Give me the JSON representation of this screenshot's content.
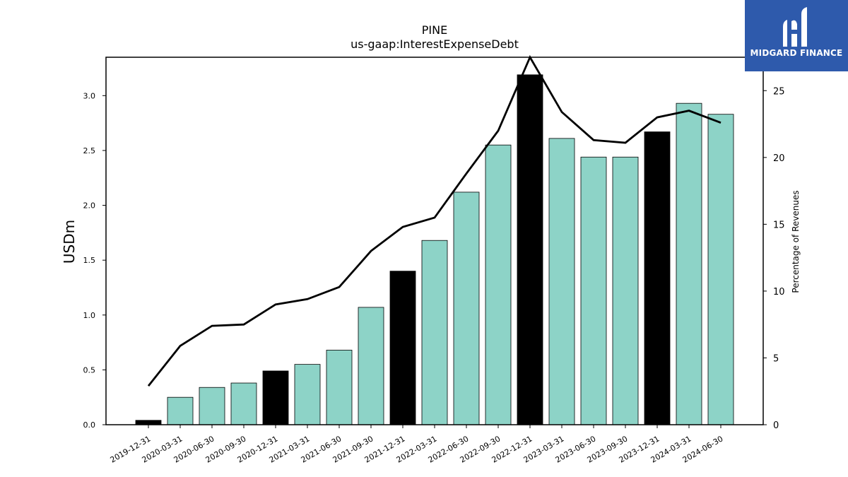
{
  "chart_data": {
    "type": "bar",
    "title": "PINE",
    "subtitle": "us-gaap:InterestExpenseDebt",
    "ylabel": "USDm",
    "y2label": "Percentage of Revenues",
    "ylim": [
      0,
      3.35
    ],
    "y2lim": [
      0,
      27.5
    ],
    "yticks": [
      "0.0",
      "0.5",
      "1.0",
      "1.5",
      "2.0",
      "2.5",
      "3.0"
    ],
    "y2ticks": [
      "0",
      "5",
      "10",
      "15",
      "20",
      "25"
    ],
    "categories": [
      "2019-12-31",
      "2020-03-31",
      "2020-06-30",
      "2020-09-30",
      "2020-12-31",
      "2021-03-31",
      "2021-06-30",
      "2021-09-30",
      "2021-12-31",
      "2022-03-31",
      "2022-06-30",
      "2022-09-30",
      "2022-12-31",
      "2023-03-31",
      "2023-06-30",
      "2023-09-30",
      "2023-12-31",
      "2024-03-31",
      "2024-06-30"
    ],
    "series": [
      {
        "kind": "bar",
        "axis": "left",
        "values": [
          0.04,
          0.25,
          0.34,
          0.38,
          0.49,
          0.55,
          0.68,
          1.07,
          1.4,
          1.68,
          2.12,
          2.55,
          3.19,
          2.61,
          2.44,
          2.44,
          2.67,
          2.93,
          2.83
        ],
        "highlight": [
          true,
          false,
          false,
          false,
          true,
          false,
          false,
          false,
          true,
          false,
          false,
          false,
          true,
          false,
          false,
          false,
          true,
          false,
          false
        ]
      },
      {
        "kind": "line",
        "axis": "right",
        "values": [
          2.9,
          5.9,
          7.4,
          7.5,
          9.0,
          9.4,
          10.3,
          13.0,
          14.8,
          15.5,
          18.8,
          22.0,
          27.5,
          23.4,
          21.3,
          21.1,
          23.0,
          23.5,
          22.6
        ]
      }
    ],
    "colors": {
      "bar": "#8dd3c7",
      "bar_highlight": "#000000",
      "line": "#000000"
    },
    "grid": false
  },
  "logo": {
    "text": "MIDGARD FINANCE"
  }
}
